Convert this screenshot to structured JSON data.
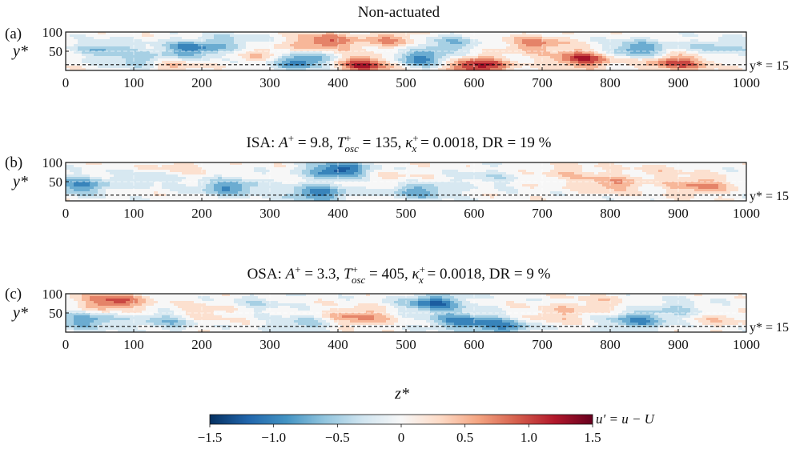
{
  "chart_data": [
    {
      "type": "heatmap",
      "panel_label": "(a)",
      "title": "Non-actuated",
      "xlim": [
        0,
        1000
      ],
      "ylim": [
        0,
        100
      ],
      "x_ticks": [
        "0",
        "100",
        "200",
        "300",
        "400",
        "500",
        "600",
        "700",
        "800",
        "900",
        "1000"
      ],
      "y_ticks": [
        "50",
        "100"
      ],
      "ylabel": "y*",
      "reference_line": {
        "y": 15,
        "label": "y* = 15"
      },
      "field_features": [
        {
          "z": 120,
          "y": 20,
          "u": -1.1
        },
        {
          "z": 185,
          "y": 55,
          "u": -1.0
        },
        {
          "z": 60,
          "y": 55,
          "u": -0.6
        },
        {
          "z": 140,
          "y": 15,
          "u": 1.0
        },
        {
          "z": 345,
          "y": 25,
          "u": -1.2
        },
        {
          "z": 440,
          "y": 15,
          "u": 1.2
        },
        {
          "z": 380,
          "y": 75,
          "u": 0.9
        },
        {
          "z": 520,
          "y": 30,
          "u": -1.0
        },
        {
          "z": 605,
          "y": 12,
          "u": 1.3
        },
        {
          "z": 560,
          "y": 70,
          "u": -0.6
        },
        {
          "z": 760,
          "y": 30,
          "u": 1.1
        },
        {
          "z": 690,
          "y": 70,
          "u": 0.7
        },
        {
          "z": 840,
          "y": 55,
          "u": -0.9
        },
        {
          "z": 900,
          "y": 20,
          "u": 1.0
        },
        {
          "z": 960,
          "y": 60,
          "u": -0.5
        },
        {
          "z": 240,
          "y": 75,
          "u": -0.4
        },
        {
          "z": 300,
          "y": 40,
          "u": 0.5
        },
        {
          "z": 480,
          "y": 80,
          "u": 0.6
        }
      ]
    },
    {
      "type": "heatmap",
      "panel_label": "(b)",
      "title": "ISA: A+ = 9.8, T+osc = 135, κ+x = 0.0018, DR = 19 %",
      "xlim": [
        0,
        1000
      ],
      "ylim": [
        0,
        100
      ],
      "x_ticks": [
        "0",
        "100",
        "200",
        "300",
        "400",
        "500",
        "600",
        "700",
        "800",
        "900",
        "1000"
      ],
      "y_ticks": [
        "50",
        "100"
      ],
      "ylabel": "y*",
      "reference_line": {
        "y": 15,
        "label": "y* = 15"
      },
      "field_features": [
        {
          "z": 20,
          "y": 40,
          "u": -0.9
        },
        {
          "z": 240,
          "y": 35,
          "u": -0.9
        },
        {
          "z": 120,
          "y": 60,
          "u": -0.4
        },
        {
          "z": 400,
          "y": 80,
          "u": -1.3
        },
        {
          "z": 370,
          "y": 20,
          "u": -1.0
        },
        {
          "z": 520,
          "y": 25,
          "u": -0.8
        },
        {
          "z": 480,
          "y": 60,
          "u": 0.2
        },
        {
          "z": 620,
          "y": 60,
          "u": -0.3
        },
        {
          "z": 800,
          "y": 45,
          "u": 0.6
        },
        {
          "z": 930,
          "y": 40,
          "u": 0.7
        },
        {
          "z": 740,
          "y": 75,
          "u": 0.3
        },
        {
          "z": 870,
          "y": 80,
          "u": 0.2
        },
        {
          "z": 160,
          "y": 85,
          "u": 0.3
        }
      ]
    },
    {
      "type": "heatmap",
      "panel_label": "(c)",
      "title": "OSA: A+ = 3.3, T+osc = 405, κ+x = 0.0018, DR = 9 %",
      "xlim": [
        0,
        1000
      ],
      "ylim": [
        0,
        100
      ],
      "x_ticks": [
        "0",
        "100",
        "200",
        "300",
        "400",
        "500",
        "600",
        "700",
        "800",
        "900",
        "1000"
      ],
      "y_ticks": [
        "50",
        "100"
      ],
      "ylabel": "y*",
      "reference_line": {
        "y": 15,
        "label": "y* = 15"
      },
      "field_features": [
        {
          "z": 70,
          "y": 80,
          "u": 1.0
        },
        {
          "z": 30,
          "y": 30,
          "u": -0.8
        },
        {
          "z": 150,
          "y": 30,
          "u": -0.6
        },
        {
          "z": 200,
          "y": 50,
          "u": 0.4
        },
        {
          "z": 350,
          "y": 20,
          "u": -0.5
        },
        {
          "z": 430,
          "y": 40,
          "u": 0.7
        },
        {
          "z": 540,
          "y": 75,
          "u": -1.1
        },
        {
          "z": 580,
          "y": 30,
          "u": -0.9
        },
        {
          "z": 640,
          "y": 15,
          "u": -0.9
        },
        {
          "z": 720,
          "y": 45,
          "u": 0.4
        },
        {
          "z": 780,
          "y": 75,
          "u": 0.3
        },
        {
          "z": 840,
          "y": 30,
          "u": -0.9
        },
        {
          "z": 900,
          "y": 60,
          "u": -0.4
        },
        {
          "z": 960,
          "y": 35,
          "u": 0.3
        },
        {
          "z": 280,
          "y": 75,
          "u": -0.3
        }
      ]
    }
  ],
  "xaxis_label": "z*",
  "colorbar": {
    "label": "u′ = u − U",
    "min": -1.5,
    "max": 1.5,
    "ticks": [
      "−1.5",
      "−1.0",
      "−0.5",
      "0",
      "0.5",
      "1.0",
      "1.5"
    ],
    "colors": [
      "#053061",
      "#2166ac",
      "#4393c3",
      "#92c5de",
      "#d1e5f0",
      "#f7f7f7",
      "#fddbc7",
      "#f4a582",
      "#d6604d",
      "#b2182b",
      "#67001f"
    ]
  }
}
